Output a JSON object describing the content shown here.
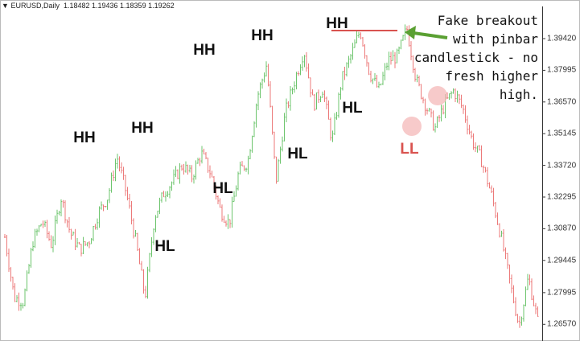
{
  "header": {
    "menu_icon": "triangle-down-icon",
    "symbol": "EURUSD,Daily",
    "ohlc": "1.18482 1.19436 1.18359 1.19262"
  },
  "annotation": {
    "lines": [
      "Fake breakout",
      "with pinbar",
      "candlestick - no",
      "fresh higher",
      "high."
    ],
    "arrow_color": "#5aa032",
    "resistance_line_color": "#d9534f",
    "highlight_color": "#f4b8b8"
  },
  "chart_data": {
    "type": "ohlc-bar",
    "title": "",
    "up_color": "#6cc46c",
    "down_color": "#ec7a7a",
    "ylim": [
      1.258,
      1.404
    ],
    "y_ticks": [
      "1.39420",
      "1.37995",
      "1.36570",
      "1.35145",
      "1.33720",
      "1.32295",
      "1.30870",
      "1.29445",
      "1.27995",
      "1.26570"
    ],
    "grid": false,
    "price_path": [
      1.3049,
      1.2778,
      1.276,
      1.3031,
      1.3121,
      1.3013,
      1.323,
      1.3067,
      1.2995,
      1.3031,
      1.3157,
      1.323,
      1.341,
      1.3247,
      1.3031,
      1.2778,
      1.3139,
      1.3248,
      1.3302,
      1.3374,
      1.332,
      1.3428,
      1.3338,
      1.3175,
      1.311,
      1.3338,
      1.3392,
      1.368,
      1.3826,
      1.3302,
      1.3608,
      1.3753,
      1.389,
      1.3644,
      1.3717,
      1.3482,
      1.3753,
      1.3862,
      1.398,
      1.3789,
      1.3709,
      1.3844,
      1.3862,
      1.399,
      1.3753,
      1.3644,
      1.3537,
      1.3644,
      1.3709,
      1.3626,
      1.3482,
      1.3392,
      1.3247,
      1.3067,
      1.285,
      1.265,
      1.2868,
      1.267
    ],
    "swing_labels": [
      {
        "text": "HH",
        "type": "higher-high"
      },
      {
        "text": "HH",
        "type": "higher-high"
      },
      {
        "text": "HH",
        "type": "higher-high"
      },
      {
        "text": "HH",
        "type": "higher-high"
      },
      {
        "text": "HH",
        "type": "higher-high"
      },
      {
        "text": "HL",
        "type": "higher-low"
      },
      {
        "text": "HL",
        "type": "higher-low"
      },
      {
        "text": "HL",
        "type": "higher-low"
      },
      {
        "text": "HL",
        "type": "higher-low"
      },
      {
        "text": "LL",
        "type": "lower-low",
        "color": "#d9534f"
      }
    ]
  }
}
